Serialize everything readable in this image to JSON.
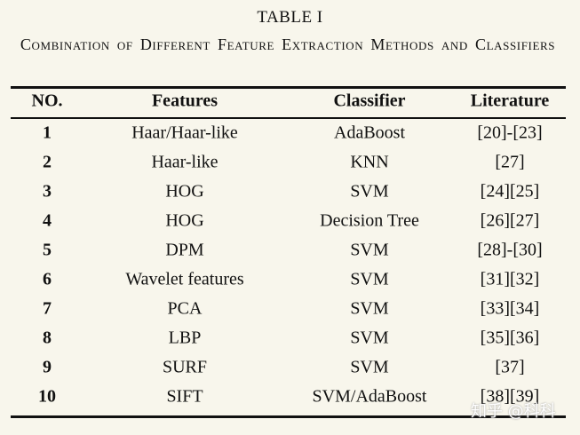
{
  "table": {
    "label": "TABLE I",
    "caption": "Combination of Different Feature Extraction Methods and Classifiers",
    "header": [
      "NO.",
      "Features",
      "Classifier",
      "Literature"
    ],
    "rows": [
      [
        "1",
        "Haar/Haar-like",
        "AdaBoost",
        "[20]-[23]"
      ],
      [
        "2",
        "Haar-like",
        "KNN",
        "[27]"
      ],
      [
        "3",
        "HOG",
        "SVM",
        "[24][25]"
      ],
      [
        "4",
        "HOG",
        "Decision Tree",
        "[26][27]"
      ],
      [
        "5",
        "DPM",
        "SVM",
        "[28]-[30]"
      ],
      [
        "6",
        "Wavelet features",
        "SVM",
        "[31][32]"
      ],
      [
        "7",
        "PCA",
        "SVM",
        "[33][34]"
      ],
      [
        "8",
        "LBP",
        "SVM",
        "[35][36]"
      ],
      [
        "9",
        "SURF",
        "SVM",
        "[37]"
      ],
      [
        "10",
        "SIFT",
        "SVM/AdaBoost",
        "[38][39]"
      ]
    ]
  },
  "watermark": "知乎 @科科"
}
